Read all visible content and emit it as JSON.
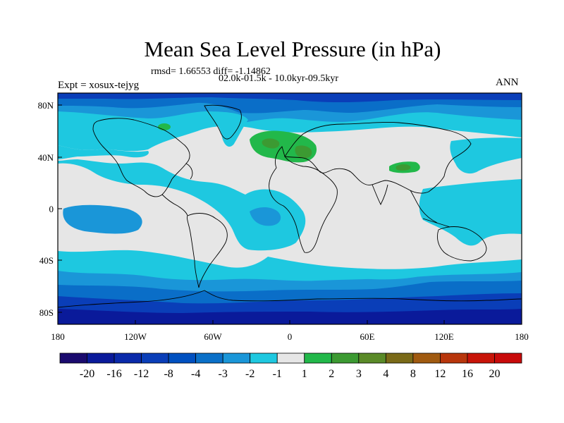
{
  "title": "Mean Sea Level Pressure (in hPa)",
  "stats": "rmsd= 1.66553 diff= -1.14862",
  "period": "02.0k-01.5k - 10.0kyr-09.5kyr",
  "experiment": "Expt = xosux-tejyg",
  "season": "ANN",
  "x_ticks": [
    "180",
    "120W",
    "60W",
    "0",
    "60E",
    "120E",
    "180"
  ],
  "y_ticks": [
    "80N",
    "40N",
    "0",
    "40S",
    "80S"
  ],
  "colorbar": {
    "labels": [
      "-20",
      "-16",
      "-12",
      "-8",
      "-4",
      "-3",
      "-2",
      "-1",
      "1",
      "2",
      "3",
      "4",
      "8",
      "12",
      "16",
      "20"
    ],
    "colors": [
      "#1a0a6e",
      "#0a1a9a",
      "#0a2aaa",
      "#0a3eb8",
      "#0050c0",
      "#0a70c8",
      "#1a96d8",
      "#1ec8e0",
      "#e6e6e6",
      "#22b84a",
      "#3c9a32",
      "#5a8a28",
      "#7a6a18",
      "#a05a10",
      "#b8360c",
      "#c81408",
      "#c80a0a"
    ]
  },
  "palette": {
    "light_gray": "#e6e6e6",
    "cyan": "#1ec8e0",
    "mid_blue": "#1a96d8",
    "blue": "#0a6ec8",
    "dark_blue": "#0a3eb8",
    "navy": "#0a1a9a",
    "green": "#22b84a",
    "dark_green": "#3c9a32"
  }
}
